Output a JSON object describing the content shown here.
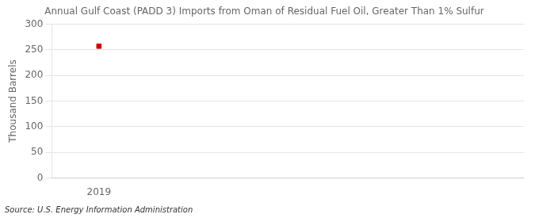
{
  "chart_data": {
    "type": "scatter",
    "title": "Annual Gulf Coast (PADD 3) Imports from Oman of Residual Fuel Oil, Greater Than 1% Sulfur",
    "ylabel": "Thousand Barrels",
    "annotation": "Source: U.S. Energy Information Administration",
    "x": [
      2019
    ],
    "values": [
      257
    ],
    "color": "#cc0000",
    "marker": "square",
    "xlim": [
      2018.5,
      2023.5
    ],
    "xticks": [
      2019
    ],
    "ylim": [
      0,
      300
    ],
    "yticks": [
      0,
      50,
      100,
      150,
      200,
      250,
      300
    ],
    "grid": "y"
  }
}
